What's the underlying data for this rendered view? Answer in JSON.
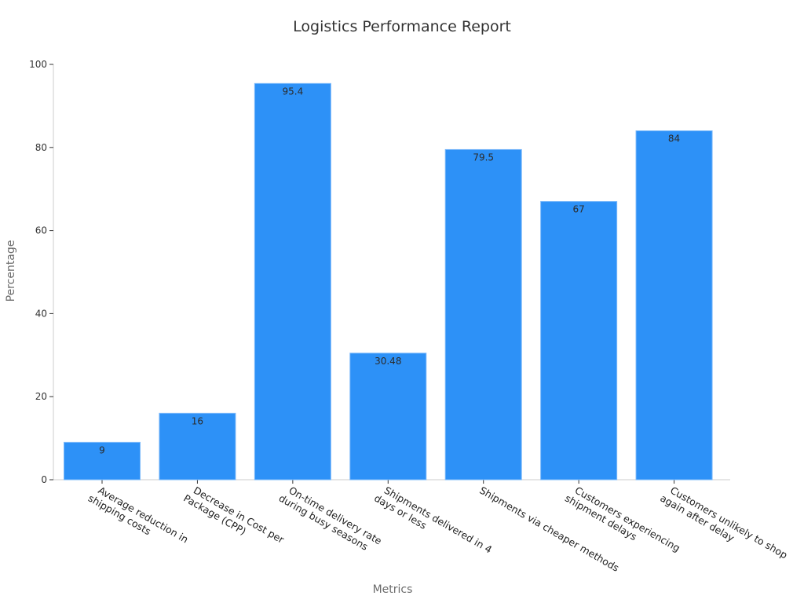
{
  "chart_data": {
    "type": "bar",
    "title": "Logistics Performance Report",
    "xlabel": "Metrics",
    "ylabel": "Percentage",
    "ylim": [
      0,
      100
    ],
    "yticks": [
      0,
      20,
      40,
      60,
      80,
      100
    ],
    "grid": false,
    "bar_color": "#2d91f7",
    "categories": [
      [
        "Average reduction in",
        "shipping costs"
      ],
      [
        "Decrease in Cost per",
        "Package (CPP)"
      ],
      [
        "On-time delivery rate",
        "during busy seasons"
      ],
      [
        "Shipments delivered in 4",
        "days or less"
      ],
      [
        "Shipments via cheaper methods"
      ],
      [
        "Customers experiencing",
        "shipment delays"
      ],
      [
        "Customers unlikely to shop",
        "again after delay"
      ]
    ],
    "values": [
      9,
      16,
      95.4,
      30.48,
      79.5,
      67,
      84
    ],
    "value_labels": [
      "9",
      "16",
      "95.4",
      "30.48",
      "79.5",
      "67",
      "84"
    ]
  }
}
